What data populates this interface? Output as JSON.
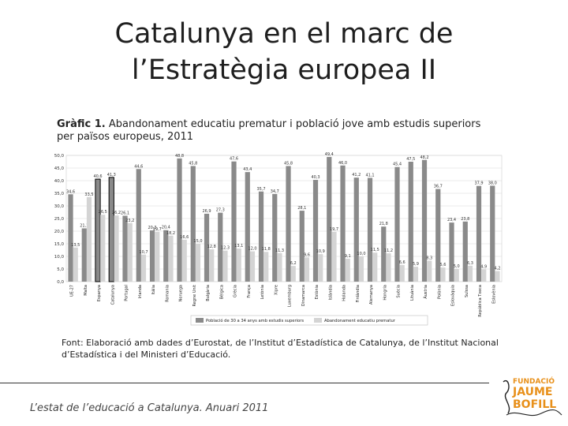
{
  "slide": {
    "title_line1": "Catalunya en el marc de",
    "title_line2": "l’Estratègia europea II",
    "caption_label": "Gràfic 1.",
    "caption_text": " Abandonament educatiu prematur i població jove amb estudis superiors per països europeus, 2011",
    "source": "Font: Elaboració amb dades d’Eurostat, de l’Institut d’Estadística de Catalunya, de l’Institut Nacional d’Estadística i del Ministeri d’Educació.",
    "footer": "L’estat de l’educació a Catalunya. Anuari 2011"
  },
  "logo": {
    "line1": "FUNDACIÓ",
    "line2": "JAUME",
    "line3": "BOFILL",
    "colors": {
      "orange": "#e8901a",
      "dark": "#222222"
    }
  },
  "chart_data": {
    "type": "bar",
    "ylim": [
      0,
      50
    ],
    "yticks": [
      "0,0",
      "5,0",
      "10,0",
      "15,0",
      "20,0",
      "25,0",
      "30,0",
      "35,0",
      "40,0",
      "45,0",
      "50,0"
    ],
    "categories": [
      "UE-27",
      "Malta",
      "Espanya",
      "Catalunya",
      "Portugal",
      "Irlanda",
      "Itàlia",
      "Romania",
      "Noruega",
      "Regne Unit",
      "Bulgària",
      "Bèlgica",
      "Grècia",
      "França",
      "Letònia",
      "Xipre",
      "Luxemburg",
      "Dinamarca",
      "Estònia",
      "Islàndia",
      "Holanda",
      "Finlàndia",
      "Alemanya",
      "Hongria",
      "Suècia",
      "Lituània",
      "Àustria",
      "Polònia",
      "Eslovàquia",
      "Suïssa",
      "República Txeca",
      "Eslovènia"
    ],
    "series": [
      {
        "name": "Població de 30 a 34 anys amb estudis superiors",
        "color": "#8a8a8a",
        "values": [
          34.6,
          21.1,
          40.6,
          41.3,
          26.1,
          44.6,
          20.3,
          20.4,
          48.8,
          45.8,
          26.9,
          27.3,
          47.6,
          43.4,
          35.7,
          34.7,
          45.8,
          28.1,
          40.3,
          49.4,
          46.0,
          41.2,
          41.1,
          21.8,
          45.4,
          47.5,
          48.2,
          36.7,
          23.4,
          23.8,
          37.9,
          38.0
        ]
      },
      {
        "name": "Abandonament educatiu prematur",
        "color": "#d4d4d4",
        "values": [
          13.5,
          33.5,
          26.5,
          26.2,
          23.2,
          10.7,
          19.7,
          18.2,
          16.6,
          15.0,
          12.8,
          12.3,
          13.1,
          12.0,
          11.8,
          11.3,
          6.2,
          9.6,
          10.9,
          19.7,
          9.1,
          10.0,
          11.5,
          11.2,
          6.6,
          5.9,
          8.3,
          5.6,
          5.0,
          6.3,
          4.9,
          4.2
        ]
      }
    ]
  }
}
